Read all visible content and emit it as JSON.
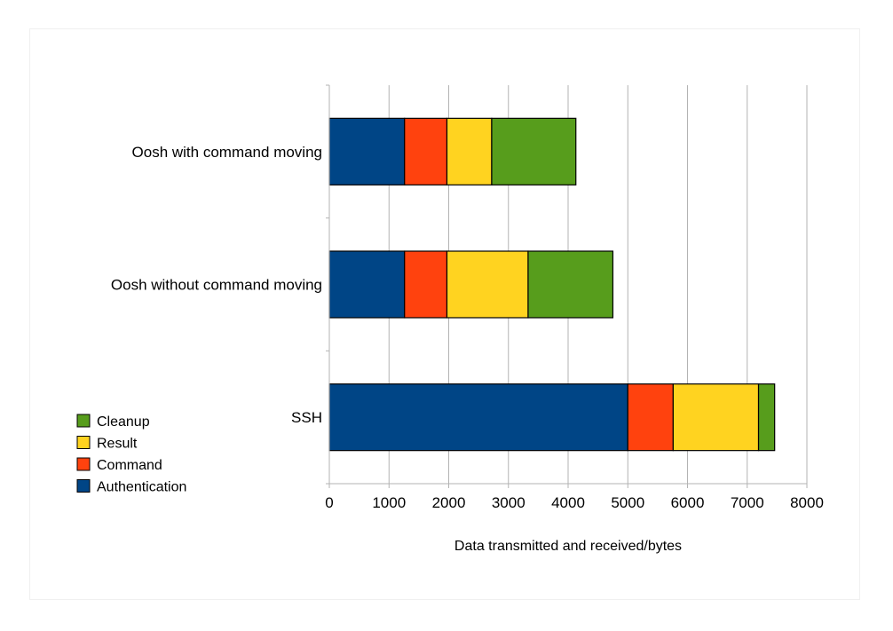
{
  "chart_data": {
    "type": "bar",
    "orientation": "horizontal",
    "stacked": true,
    "categories": [
      "Oosh with command moving",
      "Oosh without command moving",
      "SSH"
    ],
    "series": [
      {
        "name": "Authentication",
        "color": "#004586",
        "values": [
          1260,
          1260,
          5000
        ]
      },
      {
        "name": "Command",
        "color": "#ff420e",
        "values": [
          710,
          710,
          760
        ]
      },
      {
        "name": "Result",
        "color": "#ffd320",
        "values": [
          750,
          1360,
          1430
        ]
      },
      {
        "name": "Cleanup",
        "color": "#579d1c",
        "values": [
          1410,
          1420,
          270
        ]
      }
    ],
    "xlabel": "Data transmitted and received/bytes",
    "ylabel": "",
    "xlim": [
      0,
      8000
    ],
    "xticks": [
      0,
      1000,
      2000,
      3000,
      4000,
      5000,
      6000,
      7000,
      8000
    ],
    "grid": true,
    "legend_position": "bottom-left"
  }
}
